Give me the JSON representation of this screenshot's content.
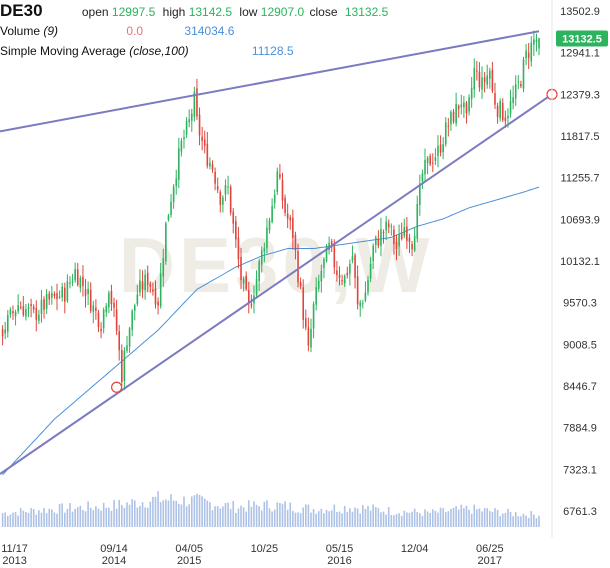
{
  "header": {
    "symbol": "DE30",
    "open_label": "open",
    "open": "12997.5",
    "high_label": "high",
    "high": "13142.5",
    "low_label": "low",
    "low": "12907.0",
    "close_label": "close",
    "close": "13132.5"
  },
  "volume_legend": {
    "label": "Volume",
    "period": "(9)",
    "value_a": "0.0",
    "value_b": "314034.6"
  },
  "sma_legend": {
    "label": "Simple Moving Average",
    "params": "(close,100)",
    "value": "11128.5"
  },
  "watermark": "DE30,W",
  "current_price_tag": "13132.5",
  "colors": {
    "up": "#2db35d",
    "down": "#e0453c",
    "sma": "#4a90d9",
    "trendline": "#7b7bbf",
    "volume": "#9fb7e2",
    "price_tag": "#2db35d",
    "marker": "#e0453c"
  },
  "chart_data": {
    "type": "candlestick",
    "title": "DE30",
    "interval": "weekly",
    "y_axis_ticks": [
      "13502.9",
      "12941.1",
      "12379.3",
      "11817.5",
      "11255.7",
      "10693.9",
      "10132.1",
      "9570.3",
      "9008.5",
      "8446.7",
      "7884.9",
      "7323.1",
      "6761.3"
    ],
    "ylim": [
      6600,
      13700
    ],
    "x_axis_ticks": [
      {
        "label": "11/17",
        "sub": "2013",
        "week": 0
      },
      {
        "label": "09/14",
        "sub": "2014",
        "week": 43
      },
      {
        "label": "04/05",
        "sub": "2015",
        "week": 72
      },
      {
        "label": "10/25",
        "sub": "",
        "week": 101
      },
      {
        "label": "05/15",
        "sub": "2016",
        "week": 130
      },
      {
        "label": "12/04",
        "sub": "",
        "week": 159
      },
      {
        "label": "06/25",
        "sub": "2017",
        "week": 188
      }
    ],
    "xlim": [
      -1,
      212
    ],
    "close_key": [
      [
        0,
        9200
      ],
      [
        6,
        9550
      ],
      [
        12,
        9400
      ],
      [
        18,
        9600
      ],
      [
        24,
        9700
      ],
      [
        28,
        10000
      ],
      [
        32,
        9750
      ],
      [
        35,
        9500
      ],
      [
        38,
        9300
      ],
      [
        41,
        9800
      ],
      [
        44,
        9200
      ],
      [
        46,
        8600
      ],
      [
        48,
        9100
      ],
      [
        52,
        9700
      ],
      [
        56,
        9900
      ],
      [
        60,
        9600
      ],
      [
        63,
        10600
      ],
      [
        66,
        11200
      ],
      [
        69,
        11700
      ],
      [
        72,
        12000
      ],
      [
        74,
        12300
      ],
      [
        75,
        12000
      ],
      [
        78,
        11600
      ],
      [
        81,
        11400
      ],
      [
        84,
        11000
      ],
      [
        87,
        11100
      ],
      [
        89,
        10600
      ],
      [
        92,
        9900
      ],
      [
        95,
        9500
      ],
      [
        98,
        9900
      ],
      [
        101,
        10400
      ],
      [
        104,
        10900
      ],
      [
        106,
        11300
      ],
      [
        109,
        10800
      ],
      [
        112,
        10500
      ],
      [
        115,
        9700
      ],
      [
        118,
        8900
      ],
      [
        120,
        9500
      ],
      [
        123,
        10000
      ],
      [
        126,
        10300
      ],
      [
        129,
        10000
      ],
      [
        132,
        9900
      ],
      [
        135,
        10200
      ],
      [
        137,
        9500
      ],
      [
        140,
        9700
      ],
      [
        143,
        10300
      ],
      [
        146,
        10500
      ],
      [
        149,
        10600
      ],
      [
        152,
        10300
      ],
      [
        155,
        10600
      ],
      [
        158,
        10400
      ],
      [
        160,
        10800
      ],
      [
        162,
        11300
      ],
      [
        165,
        11500
      ],
      [
        168,
        11600
      ],
      [
        171,
        11900
      ],
      [
        174,
        12100
      ],
      [
        177,
        12300
      ],
      [
        179,
        12000
      ],
      [
        182,
        12700
      ],
      [
        185,
        12500
      ],
      [
        188,
        12700
      ],
      [
        189,
        12400
      ],
      [
        191,
        12200
      ],
      [
        194,
        12100
      ],
      [
        197,
        12300
      ],
      [
        200,
        12600
      ],
      [
        202,
        12900
      ],
      [
        205,
        13100
      ],
      [
        207,
        13132.5
      ]
    ],
    "sma_100_key": [
      [
        0,
        7250
      ],
      [
        20,
        8000
      ],
      [
        40,
        8600
      ],
      [
        60,
        9200
      ],
      [
        75,
        9750
      ],
      [
        90,
        10050
      ],
      [
        100,
        10200
      ],
      [
        110,
        10300
      ],
      [
        120,
        10300
      ],
      [
        130,
        10350
      ],
      [
        140,
        10400
      ],
      [
        150,
        10450
      ],
      [
        160,
        10600
      ],
      [
        170,
        10700
      ],
      [
        180,
        10850
      ],
      [
        190,
        10950
      ],
      [
        200,
        11050
      ],
      [
        207,
        11128.5
      ]
    ],
    "volume_key": [
      [
        0,
        0.35
      ],
      [
        20,
        0.45
      ],
      [
        35,
        0.5
      ],
      [
        45,
        0.55
      ],
      [
        60,
        0.7
      ],
      [
        75,
        0.65
      ],
      [
        90,
        0.5
      ],
      [
        105,
        0.55
      ],
      [
        120,
        0.45
      ],
      [
        135,
        0.5
      ],
      [
        150,
        0.4
      ],
      [
        165,
        0.35
      ],
      [
        180,
        0.45
      ],
      [
        195,
        0.35
      ],
      [
        207,
        0.3
      ]
    ],
    "trendlines": [
      {
        "name": "upper",
        "points": [
          [
            -1,
            11880
          ],
          [
            207,
            13230
          ]
        ]
      },
      {
        "name": "lower",
        "points": [
          [
            -1,
            7260
          ],
          [
            44,
            8430
          ],
          [
            212,
            12379
          ]
        ]
      }
    ],
    "markers": [
      {
        "week": 44,
        "price": 8430
      },
      {
        "week": 212,
        "price": 12379
      }
    ]
  }
}
